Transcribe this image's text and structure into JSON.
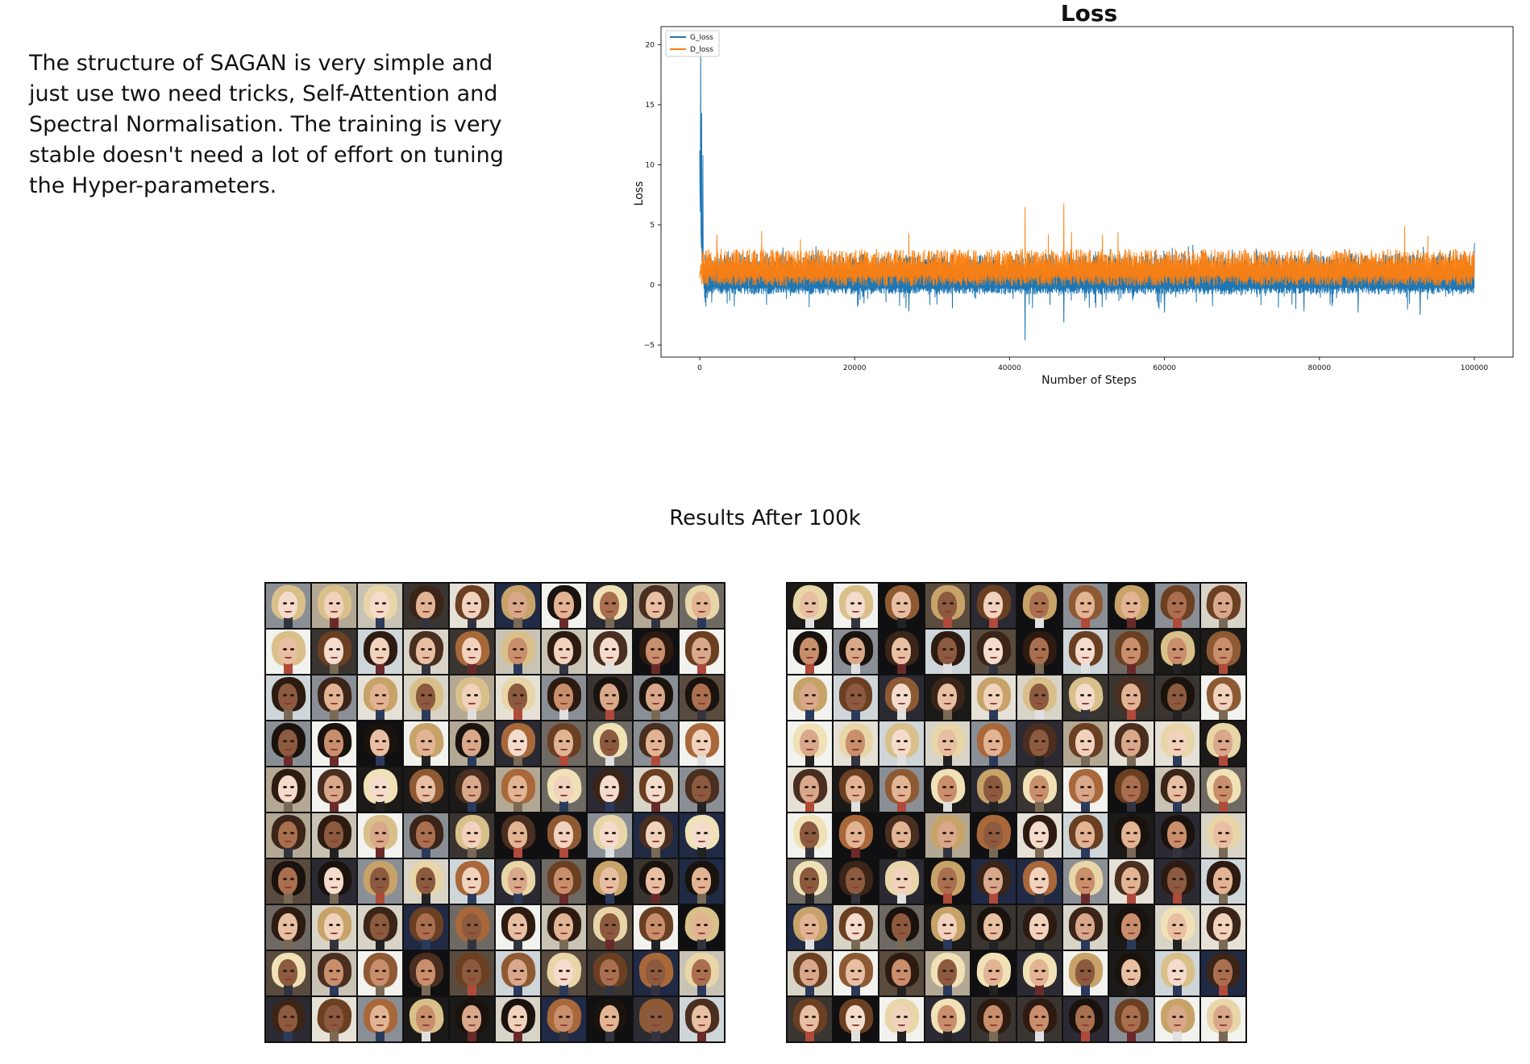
{
  "intro": {
    "lines": [
      "The structure of SAGAN is very simple and",
      "just use two need tricks, Self-Attention and",
      "Spectral Normalisation.  The training is very",
      "stable doesn't need a lot of effort on tuning",
      "the Hyper-parameters."
    ]
  },
  "chart_data": {
    "type": "line",
    "title": "Loss",
    "xlabel": "Number of Steps",
    "ylabel": "Loss",
    "xlim": [
      -5000,
      105000
    ],
    "ylim": [
      -6,
      21.5
    ],
    "xticks": [
      0,
      20000,
      40000,
      60000,
      80000,
      100000
    ],
    "xtick_labels": [
      "0",
      "20000",
      "40000",
      "60000",
      "80000",
      "100000"
    ],
    "yticks": [
      -5,
      0,
      5,
      10,
      15,
      20
    ],
    "ytick_labels": [
      "−5",
      "0",
      "5",
      "10",
      "15",
      "20"
    ],
    "grid": false,
    "legend_position": "top-left",
    "series": [
      {
        "name": "G_loss",
        "color": "#1f77b4",
        "x": [
          0,
          120,
          250,
          400,
          600,
          900,
          1500,
          3000,
          8000,
          15000,
          20000,
          27000,
          30000,
          40000,
          42000,
          44000,
          47000,
          50000,
          55000,
          60000,
          65000,
          70000,
          76000,
          80000,
          85000,
          90000,
          95000,
          100000
        ],
        "typical_range": [
          -0.8,
          2.6
        ],
        "spikes": [
          [
            120,
            20.0
          ],
          [
            250,
            14.3
          ],
          [
            400,
            10.8
          ],
          [
            15000,
            3.2
          ],
          [
            27000,
            -2.2
          ],
          [
            42000,
            -4.6
          ],
          [
            47000,
            -3.1
          ],
          [
            53000,
            3.0
          ],
          [
            60000,
            -2.3
          ],
          [
            78000,
            -2.2
          ],
          [
            85000,
            -2.3
          ],
          [
            93000,
            -2.5
          ],
          [
            100000,
            3.5
          ]
        ]
      },
      {
        "name": "D_loss",
        "color": "#ff7f0e",
        "typical_range": [
          -0.1,
          3.0
        ],
        "spikes": [
          [
            2200,
            4.2
          ],
          [
            8000,
            4.5
          ],
          [
            13000,
            3.8
          ],
          [
            27000,
            4.3
          ],
          [
            42000,
            6.5
          ],
          [
            45000,
            4.2
          ],
          [
            47000,
            6.8
          ],
          [
            48000,
            4.4
          ],
          [
            52000,
            4.2
          ],
          [
            54000,
            4.4
          ],
          [
            91000,
            4.9
          ],
          [
            94000,
            4.1
          ]
        ]
      }
    ]
  },
  "results": {
    "heading": "Results After 100k"
  },
  "sample_grids": [
    {
      "rows": 10,
      "cols": 10
    },
    {
      "rows": 10,
      "cols": 10
    }
  ]
}
